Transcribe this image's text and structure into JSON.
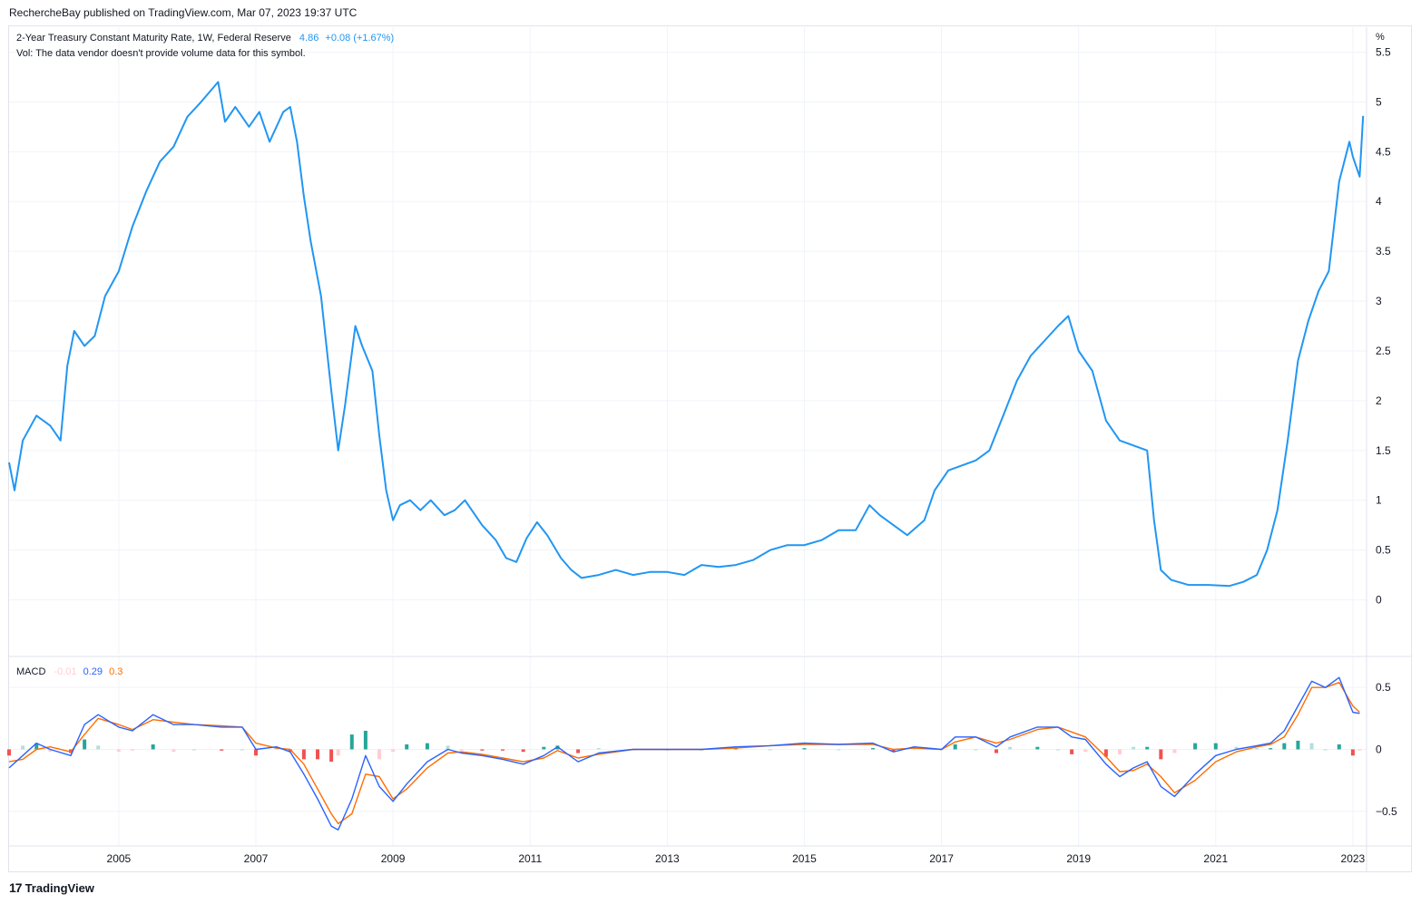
{
  "header": {
    "published": "RechercheBay published on TradingView.com, Mar 07, 2023 19:37 UTC"
  },
  "legend": {
    "symbol": "2-Year Treasury Constant Maturity Rate, 1W, Federal Reserve",
    "last": "4.86",
    "change": "+0.08 (+1.67%)",
    "vol_note": "Vol: The data vendor doesn't provide volume data for this symbol."
  },
  "macd_legend": {
    "label": "MACD",
    "hist": "-0.01",
    "macd": "0.29",
    "signal": "0.3"
  },
  "footer": {
    "brand": "TradingView",
    "logo": "17"
  },
  "colors": {
    "price": "#2196f3",
    "macd": "#2962ff",
    "signal": "#ff6d00",
    "hist_pos_strong": "#26a69a",
    "hist_pos_weak": "#b2dfdb",
    "hist_neg_strong": "#ef5350",
    "hist_neg_weak": "#ffcdd2",
    "grid": "#f0f3fa",
    "axis_text": "#131722"
  },
  "chart_data": [
    {
      "type": "line",
      "title": "2-Year Treasury Constant Maturity Rate, 1W, Federal Reserve",
      "ylabel": "%",
      "ylim": [
        -0.55,
        5.75
      ],
      "yticks": [
        0,
        0.5,
        1,
        1.5,
        2,
        2.5,
        3,
        3.5,
        4,
        4.5,
        5,
        5.5
      ],
      "xlim": [
        2003.4,
        2023.2
      ],
      "xticks": [
        "2005",
        "2007",
        "2009",
        "2011",
        "2013",
        "2015",
        "2017",
        "2019",
        "2021",
        "2023"
      ],
      "grid": true,
      "series": [
        {
          "name": "2-Year Treasury Constant Maturity Rate",
          "x": [
            2003.4,
            2003.48,
            2003.6,
            2003.8,
            2004.0,
            2004.15,
            2004.25,
            2004.35,
            2004.5,
            2004.65,
            2004.8,
            2005.0,
            2005.2,
            2005.4,
            2005.6,
            2005.8,
            2006.0,
            2006.2,
            2006.45,
            2006.55,
            2006.7,
            2006.9,
            2007.05,
            2007.2,
            2007.4,
            2007.5,
            2007.6,
            2007.7,
            2007.8,
            2007.95,
            2008.1,
            2008.2,
            2008.3,
            2008.45,
            2008.55,
            2008.7,
            2008.8,
            2008.9,
            2009.0,
            2009.1,
            2009.25,
            2009.4,
            2009.55,
            2009.75,
            2009.9,
            2010.05,
            2010.3,
            2010.5,
            2010.65,
            2010.8,
            2010.95,
            2011.1,
            2011.25,
            2011.45,
            2011.6,
            2011.75,
            2012.0,
            2012.25,
            2012.5,
            2012.75,
            2013.0,
            2013.25,
            2013.5,
            2013.75,
            2014.0,
            2014.25,
            2014.5,
            2014.75,
            2015.0,
            2015.25,
            2015.5,
            2015.75,
            2015.95,
            2016.1,
            2016.3,
            2016.5,
            2016.75,
            2016.9,
            2017.1,
            2017.3,
            2017.5,
            2017.7,
            2017.9,
            2018.1,
            2018.3,
            2018.5,
            2018.7,
            2018.85,
            2019.0,
            2019.2,
            2019.4,
            2019.6,
            2019.8,
            2020.0,
            2020.1,
            2020.2,
            2020.35,
            2020.6,
            2020.9,
            2021.2,
            2021.4,
            2021.6,
            2021.75,
            2021.9,
            2022.05,
            2022.2,
            2022.35,
            2022.5,
            2022.65,
            2022.8,
            2022.95,
            2023.0,
            2023.1,
            2023.15
          ],
          "values": [
            1.38,
            1.1,
            1.6,
            1.85,
            1.75,
            1.6,
            2.35,
            2.7,
            2.55,
            2.65,
            3.05,
            3.3,
            3.75,
            4.1,
            4.4,
            4.55,
            4.85,
            5.0,
            5.2,
            4.8,
            4.95,
            4.75,
            4.9,
            4.6,
            4.9,
            4.95,
            4.6,
            4.05,
            3.6,
            3.05,
            2.1,
            1.5,
            1.95,
            2.75,
            2.55,
            2.3,
            1.65,
            1.1,
            0.8,
            0.95,
            1.0,
            0.9,
            1.0,
            0.85,
            0.9,
            1.0,
            0.75,
            0.6,
            0.42,
            0.38,
            0.62,
            0.78,
            0.65,
            0.42,
            0.3,
            0.22,
            0.25,
            0.3,
            0.25,
            0.28,
            0.28,
            0.25,
            0.35,
            0.33,
            0.35,
            0.4,
            0.5,
            0.55,
            0.55,
            0.6,
            0.7,
            0.7,
            0.95,
            0.85,
            0.75,
            0.65,
            0.8,
            1.1,
            1.3,
            1.35,
            1.4,
            1.5,
            1.85,
            2.2,
            2.45,
            2.6,
            2.75,
            2.85,
            2.5,
            2.3,
            1.8,
            1.6,
            1.55,
            1.5,
            0.8,
            0.3,
            0.2,
            0.15,
            0.15,
            0.14,
            0.18,
            0.25,
            0.5,
            0.9,
            1.6,
            2.4,
            2.8,
            3.1,
            3.3,
            4.2,
            4.6,
            4.45,
            4.25,
            4.86
          ]
        }
      ]
    },
    {
      "type": "line",
      "title": "MACD",
      "ylim": [
        -0.78,
        0.75
      ],
      "yticks": [
        -0.5,
        0,
        0.5
      ],
      "xlim": [
        2003.4,
        2023.2
      ],
      "series": [
        {
          "name": "MACD",
          "x": [
            2003.4,
            2003.6,
            2003.8,
            2004.0,
            2004.3,
            2004.5,
            2004.7,
            2005.0,
            2005.2,
            2005.5,
            2005.8,
            2006.1,
            2006.5,
            2006.8,
            2007.0,
            2007.3,
            2007.5,
            2007.7,
            2007.9,
            2008.1,
            2008.2,
            2008.4,
            2008.6,
            2008.8,
            2009.0,
            2009.2,
            2009.5,
            2009.8,
            2010.0,
            2010.3,
            2010.6,
            2010.9,
            2011.2,
            2011.4,
            2011.7,
            2012.0,
            2012.5,
            2013.0,
            2013.5,
            2014.0,
            2014.5,
            2015.0,
            2015.5,
            2016.0,
            2016.3,
            2016.6,
            2017.0,
            2017.2,
            2017.5,
            2017.8,
            2018.0,
            2018.4,
            2018.7,
            2018.9,
            2019.1,
            2019.4,
            2019.6,
            2019.8,
            2020.0,
            2020.2,
            2020.4,
            2020.7,
            2021.0,
            2021.3,
            2021.6,
            2021.8,
            2022.0,
            2022.2,
            2022.4,
            2022.6,
            2022.8,
            2023.0,
            2023.1
          ],
          "values": [
            -0.15,
            -0.05,
            0.05,
            0.0,
            -0.05,
            0.2,
            0.28,
            0.18,
            0.15,
            0.28,
            0.2,
            0.2,
            0.18,
            0.18,
            0.0,
            0.02,
            -0.02,
            -0.2,
            -0.4,
            -0.62,
            -0.65,
            -0.4,
            -0.05,
            -0.3,
            -0.42,
            -0.28,
            -0.1,
            0.0,
            -0.03,
            -0.05,
            -0.08,
            -0.12,
            -0.05,
            0.02,
            -0.1,
            -0.03,
            0.0,
            0.0,
            0.0,
            0.02,
            0.03,
            0.05,
            0.04,
            0.05,
            -0.02,
            0.02,
            0.0,
            0.1,
            0.1,
            0.02,
            0.1,
            0.18,
            0.18,
            0.1,
            0.08,
            -0.12,
            -0.22,
            -0.15,
            -0.1,
            -0.3,
            -0.38,
            -0.2,
            -0.05,
            0.0,
            0.03,
            0.05,
            0.15,
            0.35,
            0.55,
            0.5,
            0.58,
            0.3,
            0.29
          ]
        },
        {
          "name": "Signal",
          "x": [
            2003.4,
            2003.6,
            2003.8,
            2004.0,
            2004.3,
            2004.5,
            2004.7,
            2005.0,
            2005.2,
            2005.5,
            2005.8,
            2006.1,
            2006.5,
            2006.8,
            2007.0,
            2007.3,
            2007.5,
            2007.7,
            2007.9,
            2008.1,
            2008.2,
            2008.4,
            2008.6,
            2008.8,
            2009.0,
            2009.2,
            2009.5,
            2009.8,
            2010.0,
            2010.3,
            2010.6,
            2010.9,
            2011.2,
            2011.4,
            2011.7,
            2012.0,
            2012.5,
            2013.0,
            2013.5,
            2014.0,
            2014.5,
            2015.0,
            2015.5,
            2016.0,
            2016.3,
            2016.6,
            2017.0,
            2017.2,
            2017.5,
            2017.8,
            2018.0,
            2018.4,
            2018.7,
            2018.9,
            2019.1,
            2019.4,
            2019.6,
            2019.8,
            2020.0,
            2020.2,
            2020.4,
            2020.7,
            2021.0,
            2021.3,
            2021.6,
            2021.8,
            2022.0,
            2022.2,
            2022.4,
            2022.6,
            2022.8,
            2023.0,
            2023.1
          ],
          "values": [
            -0.1,
            -0.08,
            0.0,
            0.02,
            -0.02,
            0.12,
            0.25,
            0.2,
            0.16,
            0.24,
            0.22,
            0.2,
            0.19,
            0.18,
            0.05,
            0.01,
            0.0,
            -0.12,
            -0.32,
            -0.52,
            -0.6,
            -0.52,
            -0.2,
            -0.22,
            -0.4,
            -0.32,
            -0.15,
            -0.03,
            -0.02,
            -0.04,
            -0.07,
            -0.1,
            -0.07,
            -0.01,
            -0.07,
            -0.04,
            0.0,
            0.0,
            0.0,
            0.01,
            0.03,
            0.04,
            0.04,
            0.04,
            0.0,
            0.01,
            0.0,
            0.06,
            0.1,
            0.05,
            0.08,
            0.16,
            0.18,
            0.14,
            0.1,
            -0.06,
            -0.18,
            -0.17,
            -0.12,
            -0.22,
            -0.35,
            -0.25,
            -0.1,
            -0.02,
            0.02,
            0.04,
            0.1,
            0.28,
            0.5,
            0.5,
            0.54,
            0.35,
            0.3
          ]
        },
        {
          "name": "Histogram",
          "type": "bar",
          "x": [
            2003.4,
            2003.6,
            2003.8,
            2004.0,
            2004.3,
            2004.5,
            2004.7,
            2005.0,
            2005.2,
            2005.5,
            2005.8,
            2006.1,
            2006.5,
            2006.8,
            2007.0,
            2007.3,
            2007.5,
            2007.7,
            2007.9,
            2008.1,
            2008.2,
            2008.4,
            2008.6,
            2008.8,
            2009.0,
            2009.2,
            2009.5,
            2009.8,
            2010.0,
            2010.3,
            2010.6,
            2010.9,
            2011.2,
            2011.4,
            2011.7,
            2012.0,
            2012.5,
            2013.0,
            2013.5,
            2014.0,
            2014.5,
            2015.0,
            2015.5,
            2016.0,
            2016.3,
            2016.6,
            2017.0,
            2017.2,
            2017.5,
            2017.8,
            2018.0,
            2018.4,
            2018.7,
            2018.9,
            2019.1,
            2019.4,
            2019.6,
            2019.8,
            2020.0,
            2020.2,
            2020.4,
            2020.7,
            2021.0,
            2021.3,
            2021.6,
            2021.8,
            2022.0,
            2022.2,
            2022.4,
            2022.6,
            2022.8,
            2023.0,
            2023.1
          ],
          "values": [
            -0.05,
            0.03,
            0.05,
            -0.02,
            -0.03,
            0.08,
            0.03,
            -0.02,
            -0.01,
            0.04,
            -0.02,
            0.0,
            -0.01,
            0.0,
            -0.05,
            0.01,
            -0.02,
            -0.08,
            -0.08,
            -0.1,
            -0.05,
            0.12,
            0.15,
            -0.08,
            -0.02,
            0.04,
            0.05,
            0.03,
            -0.01,
            -0.01,
            -0.01,
            -0.02,
            0.02,
            0.03,
            -0.03,
            0.01,
            0.0,
            0.0,
            0.0,
            0.01,
            0.0,
            0.01,
            0.0,
            0.01,
            -0.02,
            0.01,
            0.0,
            0.04,
            0.0,
            -0.03,
            0.02,
            0.02,
            0.0,
            -0.04,
            -0.02,
            -0.06,
            -0.04,
            0.02,
            0.02,
            -0.08,
            -0.03,
            0.05,
            0.05,
            0.02,
            0.01,
            0.01,
            0.05,
            0.07,
            0.05,
            0.0,
            0.04,
            -0.05,
            -0.01
          ]
        }
      ]
    }
  ]
}
